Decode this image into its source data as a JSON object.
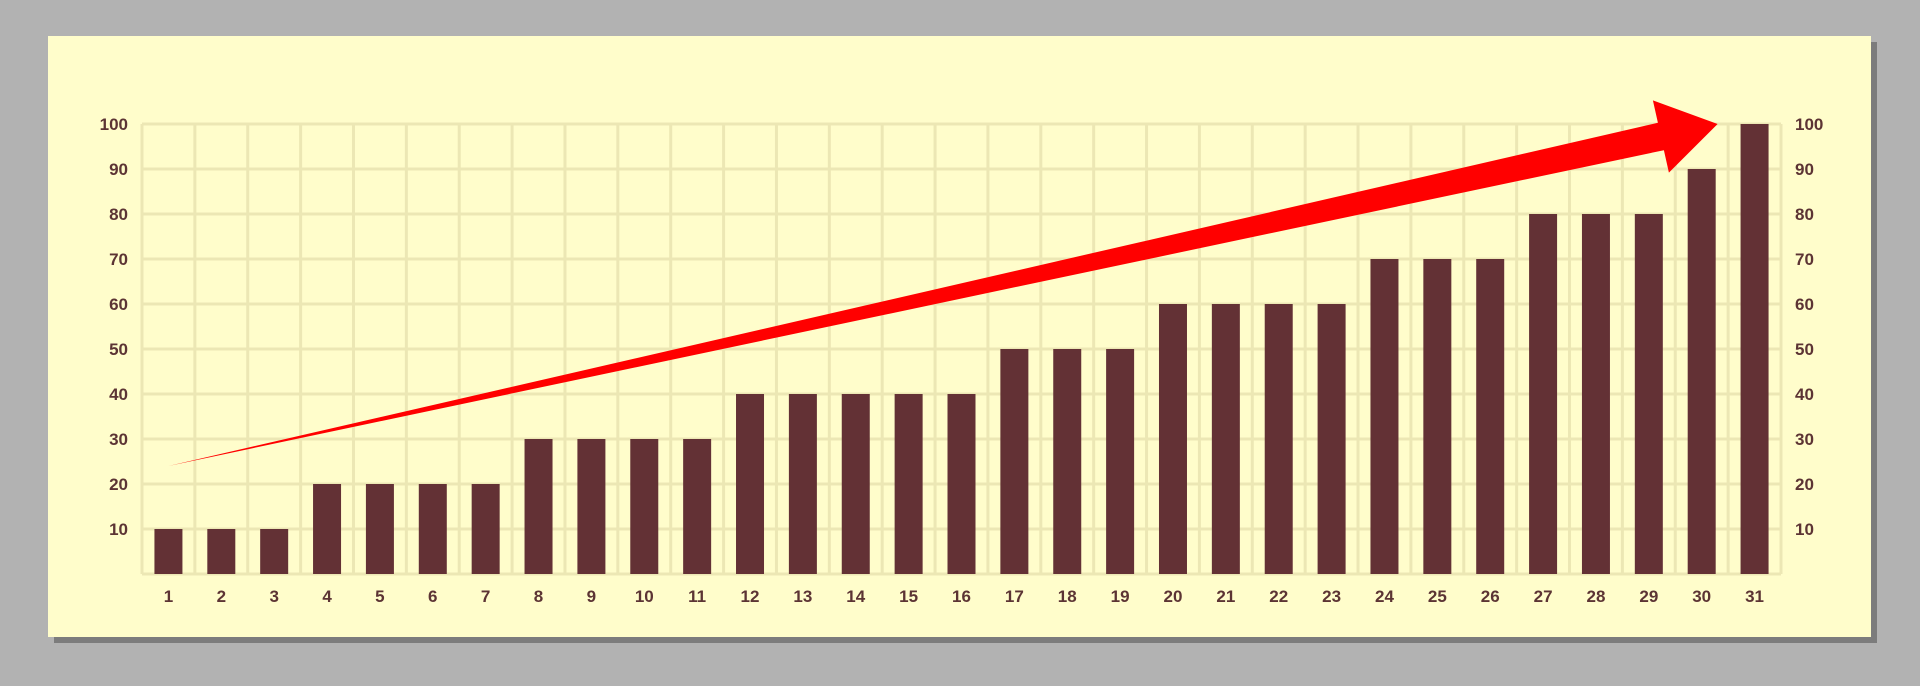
{
  "colors": {
    "page_background": "#b2b2b2",
    "panel_background": "#fffdcb",
    "grid": "#ece7b4",
    "bar": "#633135",
    "label": "#5c3434",
    "arrow": "#ff0000"
  },
  "chart_data": {
    "type": "bar",
    "title": "",
    "xlabel": "",
    "ylabel": "",
    "categories": [
      "1",
      "2",
      "3",
      "4",
      "5",
      "6",
      "7",
      "8",
      "9",
      "10",
      "11",
      "12",
      "13",
      "14",
      "15",
      "16",
      "17",
      "18",
      "19",
      "20",
      "21",
      "22",
      "23",
      "24",
      "25",
      "26",
      "27",
      "28",
      "29",
      "30",
      "31"
    ],
    "values": [
      10,
      10,
      10,
      20,
      20,
      20,
      20,
      30,
      30,
      30,
      30,
      40,
      40,
      40,
      40,
      40,
      50,
      50,
      50,
      60,
      60,
      60,
      60,
      70,
      70,
      70,
      80,
      80,
      80,
      90,
      100
    ],
    "ylim": [
      0,
      100
    ],
    "yticks": [
      10,
      20,
      30,
      40,
      50,
      60,
      70,
      80,
      90,
      100
    ],
    "y_axis_labels_on_both_sides": true,
    "grid": true,
    "annotation": {
      "type": "trend-arrow",
      "color": "#ff0000",
      "direction": "up-right",
      "start": {
        "x": 1,
        "y": 24
      },
      "end": {
        "x": 30.3,
        "y": 100
      }
    }
  }
}
